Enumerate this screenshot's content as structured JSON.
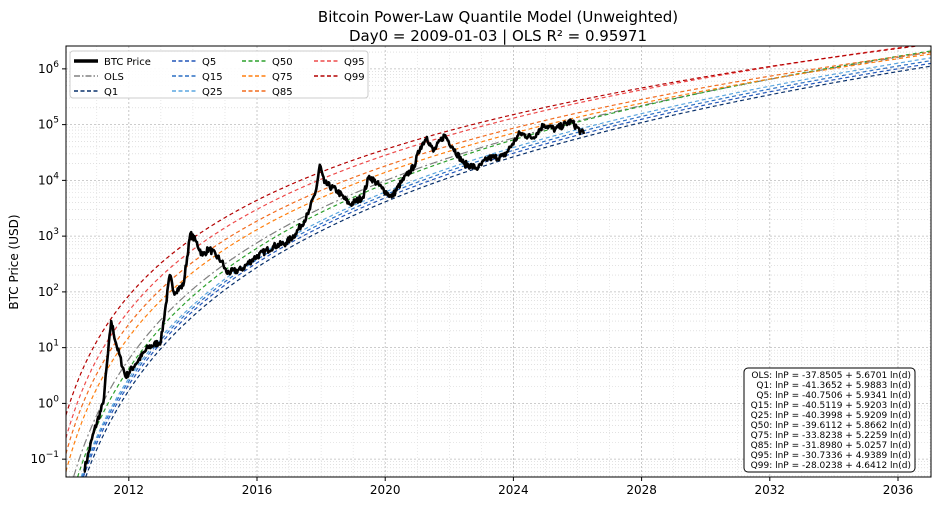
{
  "chart_data": {
    "type": "line",
    "title": "Bitcoin Power-Law Quantile Model (Unweighted)",
    "subtitle": "Day0 = 2009-01-03 | OLS R² = 0.95971",
    "xlabel": "",
    "ylabel": "BTC Price (USD)",
    "yscale": "log",
    "xlim": [
      2010.04,
      2037.03
    ],
    "ylim_log10": [
      -1.32,
      6.41
    ],
    "grid": true,
    "day0": "2009-01-03",
    "x_ticks": [
      2012,
      2016,
      2020,
      2024,
      2028,
      2032,
      2036
    ],
    "x_tick_labels": [
      "2012",
      "2016",
      "2020",
      "2024",
      "2028",
      "2032",
      "2036"
    ],
    "y_ticks_exp": [
      -1,
      0,
      1,
      2,
      3,
      4,
      5,
      6
    ],
    "legend_position": "top-left",
    "legend": [
      {
        "label": "BTC Price",
        "color": "#000000",
        "style": "solid-thick"
      },
      {
        "label": "OLS",
        "color": "#808080",
        "style": "dashdot"
      },
      {
        "label": "Q1",
        "color": "#08306b",
        "style": "dashed"
      },
      {
        "label": "Q5",
        "color": "#2155b8",
        "style": "dashed"
      },
      {
        "label": "Q15",
        "color": "#2a6fc4",
        "style": "dashed"
      },
      {
        "label": "Q25",
        "color": "#5aa6e0",
        "style": "dashed"
      },
      {
        "label": "Q50",
        "color": "#2ca02c",
        "style": "dashed"
      },
      {
        "label": "Q75",
        "color": "#ff7f0e",
        "style": "dashed"
      },
      {
        "label": "Q85",
        "color": "#f26b1d",
        "style": "dashed"
      },
      {
        "label": "Q95",
        "color": "#ee4a4a",
        "style": "dashed"
      },
      {
        "label": "Q99",
        "color": "#b30000",
        "style": "dashed"
      }
    ],
    "models": [
      {
        "name": "OLS",
        "a": -37.8505,
        "b": 5.6701,
        "color": "#808080",
        "dash": "8,3,2,3",
        "text": "OLS: lnP = -37.8505 + 5.6701 ln(d)"
      },
      {
        "name": "Q1",
        "a": -41.3652,
        "b": 5.9883,
        "color": "#08306b",
        "dash": "4,3",
        "text": "Q1: lnP = -41.3652 + 5.9883 ln(d)"
      },
      {
        "name": "Q5",
        "a": -40.7506,
        "b": 5.9341,
        "color": "#2155b8",
        "dash": "4,3",
        "text": "Q5: lnP = -40.7506 + 5.9341 ln(d)"
      },
      {
        "name": "Q15",
        "a": -40.5119,
        "b": 5.9203,
        "color": "#2a6fc4",
        "dash": "4,3",
        "text": "Q15: lnP = -40.5119 + 5.9203 ln(d)"
      },
      {
        "name": "Q25",
        "a": -40.3998,
        "b": 5.9209,
        "color": "#5aa6e0",
        "dash": "4,3",
        "text": "Q25: lnP = -40.3998 + 5.9209 ln(d)"
      },
      {
        "name": "Q50",
        "a": -39.6112,
        "b": 5.8662,
        "color": "#2ca02c",
        "dash": "4,3",
        "text": "Q50: lnP = -39.6112 + 5.8662 ln(d)"
      },
      {
        "name": "Q75",
        "a": -33.8238,
        "b": 5.2259,
        "color": "#ff7f0e",
        "dash": "4,3",
        "text": "Q75: lnP = -33.8238 + 5.2259 ln(d)"
      },
      {
        "name": "Q85",
        "a": -31.898,
        "b": 5.0257,
        "color": "#f26b1d",
        "dash": "4,3",
        "text": "Q85: lnP = -31.8980 + 5.0257 ln(d)"
      },
      {
        "name": "Q95",
        "a": -30.7336,
        "b": 4.9389,
        "color": "#ee4a4a",
        "dash": "4,3",
        "text": "Q95: lnP = -30.7336 + 4.9389 ln(d)"
      },
      {
        "name": "Q99",
        "a": -28.0238,
        "b": 4.6412,
        "color": "#b30000",
        "dash": "4,3",
        "text": "Q99: lnP = -28.0238 + 4.6412 ln(d)"
      }
    ],
    "btc_price": {
      "x": [
        2010.6,
        2010.9,
        2011.2,
        2011.45,
        2011.6,
        2011.9,
        2012.2,
        2012.6,
        2013.0,
        2013.28,
        2013.4,
        2013.7,
        2013.92,
        2014.1,
        2014.3,
        2014.5,
        2014.9,
        2015.05,
        2015.5,
        2015.9,
        2016.5,
        2016.9,
        2017.2,
        2017.6,
        2017.85,
        2017.96,
        2018.1,
        2018.5,
        2018.9,
        2019.3,
        2019.5,
        2019.9,
        2020.2,
        2020.5,
        2020.9,
        2021.1,
        2021.3,
        2021.5,
        2021.85,
        2022.1,
        2022.45,
        2022.9,
        2023.2,
        2023.7,
        2023.95,
        2024.2,
        2024.6,
        2024.95,
        2025.3,
        2025.8,
        2026.1,
        2026.2
      ],
      "y": [
        0.06,
        0.3,
        1,
        30,
        12,
        3,
        5,
        10,
        13,
        200,
        100,
        130,
        1100,
        800,
        450,
        600,
        350,
        220,
        250,
        400,
        650,
        750,
        1100,
        2500,
        7000,
        19000,
        9000,
        6500,
        3700,
        5000,
        12000,
        7200,
        5000,
        9200,
        18000,
        40000,
        60000,
        33000,
        65000,
        40000,
        20000,
        16500,
        25000,
        27000,
        43000,
        70000,
        58000,
        100000,
        82000,
        115000,
        75000,
        68000
      ]
    }
  }
}
